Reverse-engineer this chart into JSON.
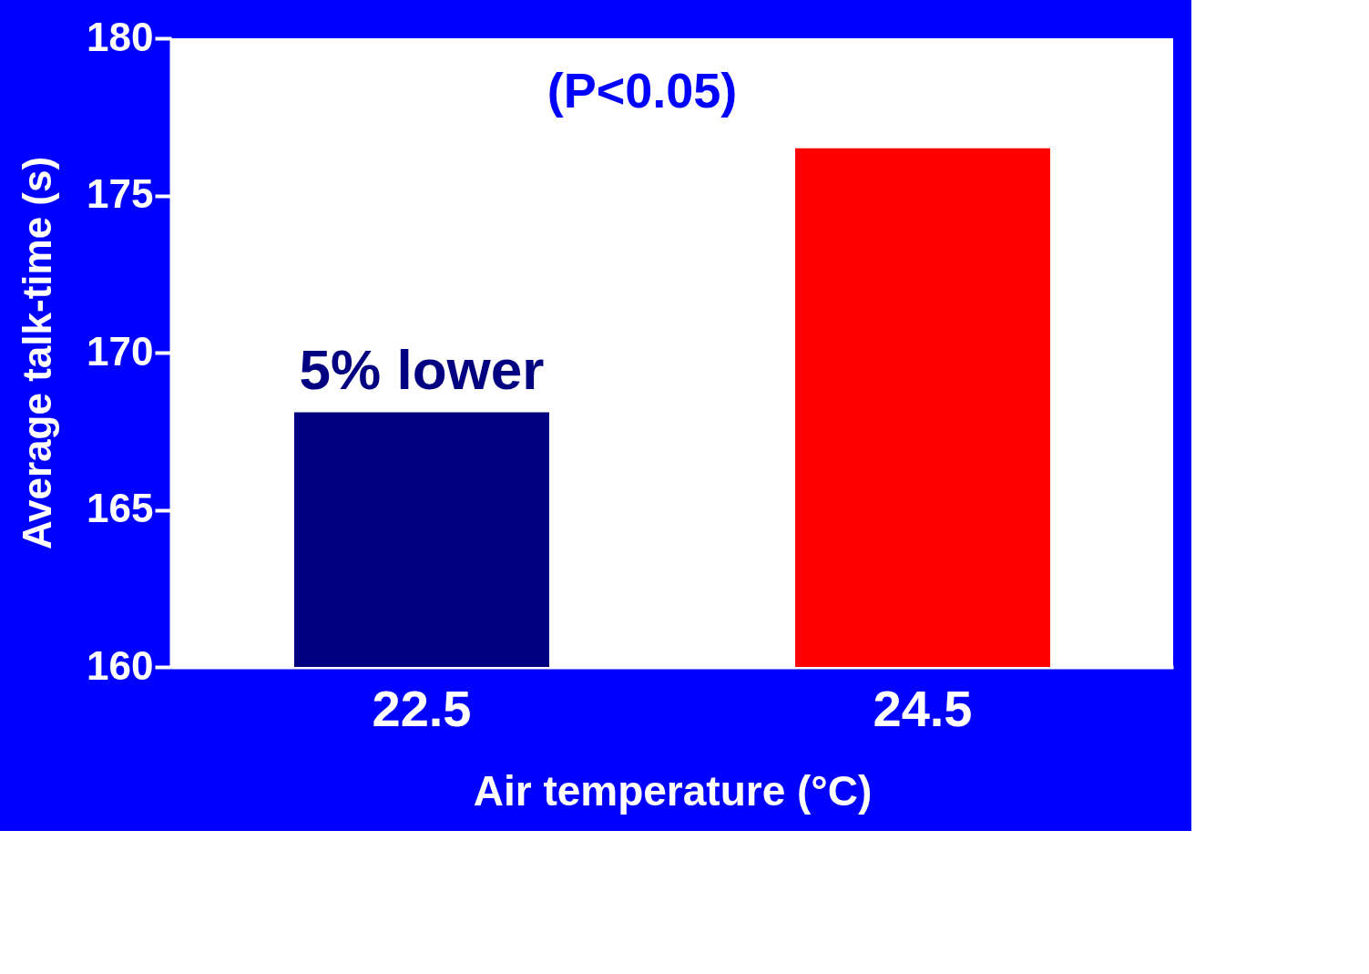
{
  "chart_data": {
    "type": "bar",
    "xlabel": "Air temperature (°C)",
    "ylabel": "Average talk-time (s)",
    "categories": [
      "22.5",
      "24.5"
    ],
    "series": [
      {
        "color": null,
        "values": [
          168.1,
          176.5
        ]
      }
    ],
    "colors": [
      "#000080",
      "#ff0000"
    ],
    "ylim": [
      160,
      180
    ],
    "yticks": [
      160,
      165,
      170,
      175,
      180
    ],
    "grid": false,
    "annotations": [
      "(P<0.05)",
      {
        "text": "5% lower",
        "x": "22.5",
        "y": 168.1
      }
    ]
  }
}
